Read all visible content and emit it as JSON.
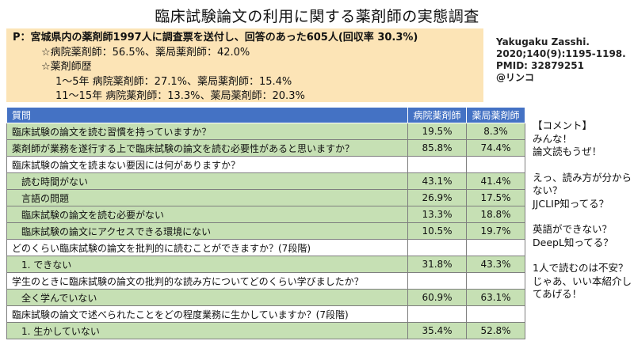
{
  "title": "臨床試験論文の利用に関する薬剤師の実態調査",
  "summary": {
    "line1": "P：宮城県内の薬剤師1997人に調査票を送付し、回答のあった605人(回収率 30.3%)",
    "line2": "☆病院薬剤師：56.5%、薬局薬剤師：42.0%",
    "line3": "☆薬剤師歴",
    "line4": "1～5年 病院薬剤師：27.1%、薬局薬剤師：15.4%",
    "line5": "11～15年 病院薬剤師：13.3%、薬局薬剤師：20.3%"
  },
  "citation": {
    "journal": "Yakugaku Zasshi.",
    "ref": "2020;140(9):1195-1198.",
    "pmid": "PMID: 32879251",
    "author": "@リンコ"
  },
  "table": {
    "headers": [
      "質問",
      "病院薬剤師",
      "薬局薬剤師"
    ],
    "rows": [
      {
        "label": "臨床試験の論文を読む習慣を持っていますか？",
        "hospital": "19.5%",
        "pharmacy": "8.3%"
      },
      {
        "label": "薬剤師が業務を遂行する上で臨床試験の論文を読む必要性があると思いますか？",
        "hospital": "85.8%",
        "pharmacy": "74.4%"
      },
      {
        "label": "臨床試験の論文を読まない要因には何がありますか？",
        "hospital": "",
        "pharmacy": ""
      },
      {
        "label": "読む時間がない",
        "hospital": "43.1%",
        "pharmacy": "41.4%"
      },
      {
        "label": "言語の問題",
        "hospital": "26.9%",
        "pharmacy": "17.5%"
      },
      {
        "label": "臨床試験の論文を読む必要がない",
        "hospital": "13.3%",
        "pharmacy": "18.8%"
      },
      {
        "label": "臨床試験の論文にアクセスできる環境にない",
        "hospital": "10.5%",
        "pharmacy": "19.7%"
      },
      {
        "label": "どのくらい臨床試験の論文を批判的に読むことができますか？(7段階)",
        "hospital": "",
        "pharmacy": ""
      },
      {
        "label": "1. できない",
        "hospital": "31.8%",
        "pharmacy": "43.3%"
      },
      {
        "label": "学生のときに臨床試験の論文の批判的な読み方についてどのくらい学びましたか？",
        "hospital": "",
        "pharmacy": ""
      },
      {
        "label": "全く学んでいない",
        "hospital": "60.9%",
        "pharmacy": "63.1%"
      },
      {
        "label": "臨床試験の論文で述べられたことをどの程度業務に生かしていますか？(7段階)",
        "hospital": "",
        "pharmacy": ""
      },
      {
        "label": "1. 生かしていない",
        "hospital": "35.4%",
        "pharmacy": "52.8%"
      }
    ]
  },
  "comment": {
    "heading": "【コメント】",
    "p1": "みんな！\n論文読もうぜ！",
    "p2": "えっ、読み方が分からない？\nJJCLIP知ってる？",
    "p3": "英語ができない？\nDeepL知ってる？",
    "p4": "1人で読むのは不安？\nじゃあ、いい本紹介してあげる！"
  },
  "colors": {
    "header_bg": "#4472c4",
    "answer_row_bg": "#c6e0b4",
    "summary_bg": "#fce4b6"
  }
}
